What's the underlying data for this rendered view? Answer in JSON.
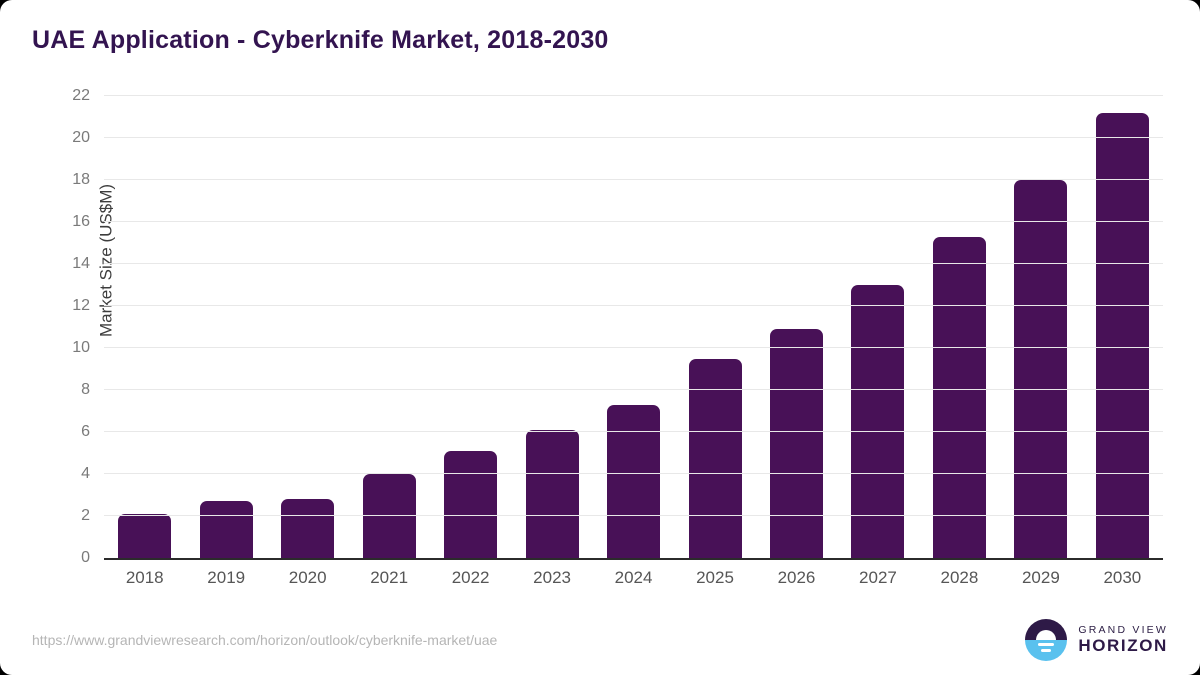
{
  "title": "UAE Application - Cyberknife Market, 2018-2030",
  "footer": {
    "source_url": "https://www.grandviewresearch.com/horizon/outlook/cyberknife-market/uae"
  },
  "logo": {
    "brand_top": "GRAND VIEW",
    "brand_bottom": "HORIZON"
  },
  "colors": {
    "bar": "#481157",
    "title": "#331450",
    "axis_line": "#2b2b2b",
    "gridline": "#e8e8e8",
    "y_tick_label": "#7a7a7a",
    "x_tick_label": "#565656",
    "source_url": "#b5b5b5",
    "logo_purple": "#2e1a47",
    "logo_blue": "#5ac1ee"
  },
  "chart_data": {
    "type": "bar",
    "title": "UAE Application - Cyberknife Market, 2018-2030",
    "categories": [
      "2018",
      "2019",
      "2020",
      "2021",
      "2022",
      "2023",
      "2024",
      "2025",
      "2026",
      "2027",
      "2028",
      "2029",
      "2030"
    ],
    "values": [
      2.1,
      2.7,
      2.8,
      4.0,
      5.1,
      6.1,
      7.3,
      9.5,
      10.9,
      13.0,
      15.3,
      18.0,
      21.2
    ],
    "xlabel": "",
    "ylabel": "Market Size (US$M)",
    "ylim": [
      0,
      22
    ],
    "ytick_step": 2,
    "grid": true,
    "legend_position": "none"
  }
}
